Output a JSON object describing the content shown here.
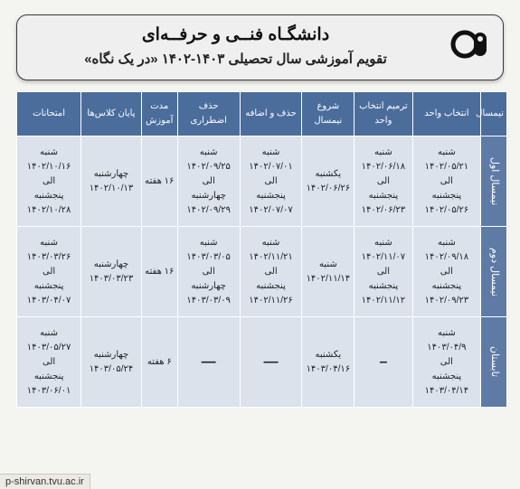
{
  "header": {
    "title": "دانشگـاه فنــی و حرفــه‌ای",
    "subtitle": "تقویم آموزشی سال تحصیلی ۱۴۰۳-۱۴۰۲ «در یک نگاه»"
  },
  "columns": [
    "نیمسال",
    "انتخاب واحد",
    "ترمیم انتخاب واحد",
    "شروع نیمسال",
    "حذف و اضافه",
    "حذف اضطراری",
    "مدت آموزش",
    "پایان کلاس‌ها",
    "امتحانات"
  ],
  "rows": [
    {
      "term": "نیمسال اول",
      "cells": [
        "شنبه\n۱۴۰۲/۰۵/۲۱\nالی\nپنجشنبه\n۱۴۰۲/۰۵/۲۶",
        "شنبه\n۱۴۰۲/۰۶/۱۸\nالی\nپنجشنبه\n۱۴۰۲/۰۶/۲۳",
        "یکشنبه\n۱۴۰۲/۰۶/۲۶",
        "شنبه\n۱۴۰۲/۰۷/۰۱\nالی\nپنجشنبه\n۱۴۰۲/۰۷/۰۷",
        "شنبه\n۱۴۰۲/۰۹/۲۵\nالی\nچهارشنبه\n۱۴۰۲/۰۹/۲۹",
        "۱۶ هفته",
        "چهارشنبه\n۱۴۰۲/۱۰/۱۳",
        "شنبه\n۱۴۰۲/۱۰/۱۶\nالی\nپنجشنبه\n۱۴۰۲/۱۰/۲۸"
      ]
    },
    {
      "term": "نیمسال دوم",
      "cells": [
        "شنبه\n۱۴۰۲/۰۹/۱۸\nالی\nپنجشنبه\n۱۴۰۲/۰۹/۲۳",
        "شنبه\n۱۴۰۲/۱۱/۰۷\nالی\nپنجشنبه\n۱۴۰۲/۱۱/۱۲",
        "شنبه\n۱۴۰۲/۱۱/۱۴",
        "شنبه\n۱۴۰۲/۱۱/۲۱\nالی\nپنجشنبه\n۱۴۰۲/۱۱/۲۶",
        "شنبه\n۱۴۰۳/۰۳/۰۵\nالی\nچهارشنبه\n۱۴۰۳/۰۳/۰۹",
        "۱۶ هفته",
        "چهارشنبه\n۱۴۰۳/۰۳/۲۳",
        "شنبه\n۱۴۰۳/۰۳/۲۶\nالی\nپنجشنبه\n۱۴۰۳/۰۴/۰۷"
      ]
    },
    {
      "term": "تابستان",
      "cells": [
        "شنبه\n۱۴۰۳/۰۴/۹\nالی\nپنجشنبه\n۱۴۰۳/۰۴/۱۴",
        "–",
        "یکشنبه\n۱۴۰۳/۰۴/۱۶",
        "—",
        "—",
        "۶ هفته",
        "چهارشنبه\n۱۴۰۳/۰۵/۲۴",
        "شنبه\n۱۴۰۳/۰۵/۲۷\nالی\nپنجشنبه\n۱۴۰۳/۰۶/۰۱"
      ]
    }
  ],
  "footer_url": "p-shirvan.tvu.ac.ir",
  "colors": {
    "header_bg": "#4b6d9c",
    "term_bg": "#5e7ba6",
    "cell_bg": "#dbe2ec",
    "page_bg": "#f4f4f0",
    "card_bg": "#efefef"
  }
}
